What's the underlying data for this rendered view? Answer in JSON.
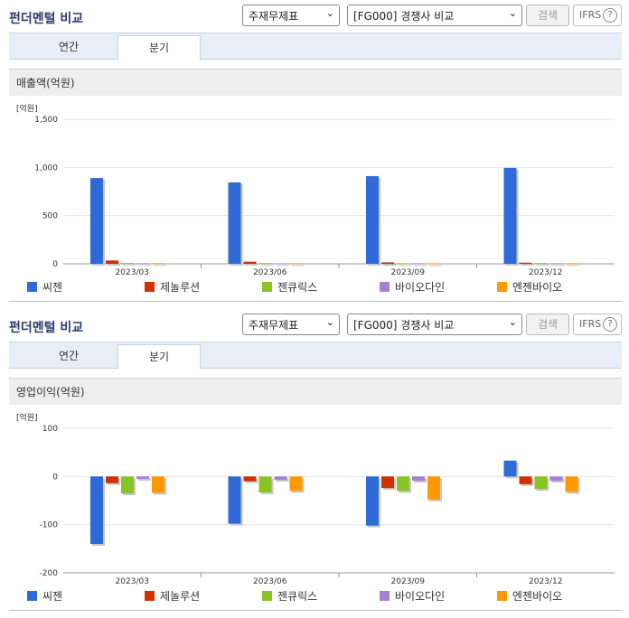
{
  "panels": [
    {
      "title": "펀더멘털 비교",
      "select1": "주재무제표",
      "select2": "[FG000] 경쟁사 비교",
      "search_label": "검색",
      "ifrs_label": "IFRS",
      "tabs": [
        {
          "label": "연간"
        },
        {
          "label": "분기"
        }
      ],
      "active_tab": 1,
      "section_title": "매출액(억원)"
    },
    {
      "title": "펀더멘털 비교",
      "select1": "주재무제표",
      "select2": "[FG000] 경쟁사 비교",
      "search_label": "검색",
      "ifrs_label": "IFRS",
      "tabs": [
        {
          "label": "연간"
        },
        {
          "label": "분기"
        }
      ],
      "active_tab": 1,
      "section_title": "영업이익(억원)"
    }
  ],
  "chart_data": [
    {
      "type": "bar",
      "unit_label": "[억원]",
      "categories": [
        "2023/03",
        "2023/06",
        "2023/09",
        "2023/12"
      ],
      "ylim": [
        0,
        1500
      ],
      "yticks": [
        0,
        500,
        1000,
        1500
      ],
      "ytick_labels": [
        "0",
        "500",
        "1,000",
        "1,500"
      ],
      "series": [
        {
          "name": "씨젠",
          "color": "#2e6ad8",
          "values": [
            890,
            845,
            910,
            995
          ]
        },
        {
          "name": "제놀루션",
          "color": "#cc3300",
          "values": [
            35,
            22,
            15,
            12
          ]
        },
        {
          "name": "젠큐릭스",
          "color": "#88c425",
          "values": [
            8,
            7,
            6,
            8
          ]
        },
        {
          "name": "바이오다인",
          "color": "#a97fd6",
          "values": [
            6,
            5,
            6,
            6
          ]
        },
        {
          "name": "엔젠바이오",
          "color": "#ff9900",
          "values": [
            7,
            6,
            5,
            6
          ]
        }
      ]
    },
    {
      "type": "bar",
      "unit_label": "[억원]",
      "categories": [
        "2023/03",
        "2023/06",
        "2023/09",
        "2023/12"
      ],
      "ylim": [
        -200,
        100
      ],
      "yticks": [
        -200,
        -100,
        0,
        100
      ],
      "ytick_labels": [
        "-200",
        "-100",
        "0",
        "100"
      ],
      "series": [
        {
          "name": "씨젠",
          "color": "#2e6ad8",
          "values": [
            -140,
            -98,
            -102,
            33
          ]
        },
        {
          "name": "제놀루션",
          "color": "#cc3300",
          "values": [
            -14,
            -10,
            -24,
            -16
          ]
        },
        {
          "name": "젠큐릭스",
          "color": "#88c425",
          "values": [
            -35,
            -33,
            -30,
            -26
          ]
        },
        {
          "name": "바이오다인",
          "color": "#a97fd6",
          "values": [
            -5,
            -7,
            -9,
            -9
          ]
        },
        {
          "name": "엔젠바이오",
          "color": "#ff9900",
          "values": [
            -34,
            -30,
            -48,
            -32
          ]
        }
      ]
    }
  ]
}
